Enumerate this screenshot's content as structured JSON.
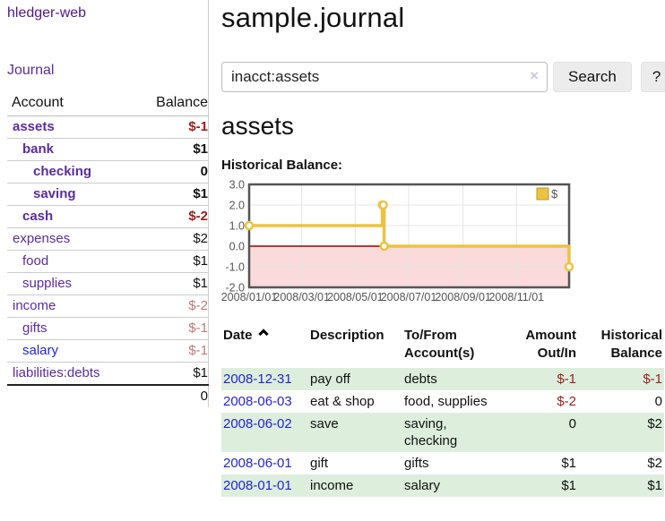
{
  "sidebar": {
    "brand": "hledger-web",
    "nav_journal": "Journal",
    "accounts_table": {
      "account_header": "Account",
      "balance_header": "Balance",
      "rows": [
        {
          "name": "assets",
          "balance": "$-1",
          "row_class": "hl",
          "indent_class": "d1",
          "link_class": "",
          "balance_class": "neg"
        },
        {
          "name": "bank",
          "balance": "$1",
          "row_class": "hl",
          "indent_class": "d2",
          "link_class": "",
          "balance_class": ""
        },
        {
          "name": "checking",
          "balance": "0",
          "row_class": "hl",
          "indent_class": "d3",
          "link_class": "",
          "balance_class": ""
        },
        {
          "name": "saving",
          "balance": "$1",
          "row_class": "hl",
          "indent_class": "d3",
          "link_class": "",
          "balance_class": ""
        },
        {
          "name": "cash",
          "balance": "$-2",
          "row_class": "hl",
          "indent_class": "d2",
          "link_class": "",
          "balance_class": "neg"
        },
        {
          "name": "expenses",
          "balance": "$2",
          "row_class": "",
          "indent_class": "d1",
          "link_class": "",
          "balance_class": ""
        },
        {
          "name": "food",
          "balance": "$1",
          "row_class": "",
          "indent_class": "d2",
          "link_class": "",
          "balance_class": ""
        },
        {
          "name": "supplies",
          "balance": "$1",
          "row_class": "",
          "indent_class": "d2",
          "link_class": "",
          "balance_class": ""
        },
        {
          "name": "income",
          "balance": "$-2",
          "row_class": "",
          "indent_class": "d1",
          "link_class": "",
          "balance_class": "negsoft"
        },
        {
          "name": "gifts",
          "balance": "$-1",
          "row_class": "",
          "indent_class": "d2",
          "link_class": "",
          "balance_class": "negsoft"
        },
        {
          "name": "salary",
          "balance": "$-1",
          "row_class": "",
          "indent_class": "d2",
          "link_class": "blue",
          "balance_class": "negsoft"
        },
        {
          "name": "liabilities:debts",
          "balance": "$1",
          "row_class": "",
          "indent_class": "d1",
          "link_class": "",
          "balance_class": ""
        }
      ],
      "total": "0"
    }
  },
  "main": {
    "title": "sample.journal",
    "search": {
      "value": "inacct:assets",
      "clear_icon": "×",
      "button_label": "Search",
      "help_label": "?"
    },
    "account_heading": "assets"
  },
  "chart_data": {
    "type": "line-step",
    "title": "Historical Balance:",
    "series": [
      {
        "name": "$",
        "color": "#EDC240",
        "points": [
          [
            "2008-01-01",
            1
          ],
          [
            "2008-06-01",
            2
          ],
          [
            "2008-06-02",
            2
          ],
          [
            "2008-06-03",
            0
          ],
          [
            "2008-12-31",
            -1
          ]
        ]
      }
    ],
    "x_ticks": [
      "2008/01/01",
      "2008/03/01",
      "2008/05/01",
      "2008/07/01",
      "2008/09/01",
      "2008/11/01"
    ],
    "y_ticks": [
      "3.0",
      "2.0",
      "1.0",
      "0.0",
      "-1.0",
      "-2.0"
    ],
    "xlim": [
      "2008-01-01",
      "2008-12-31"
    ],
    "ylim": [
      -2,
      3
    ],
    "grid": true,
    "legend_position": "top-right",
    "negative_region_color": "#fadada",
    "zero_line_color": "#990000",
    "tick_color": "#545454"
  },
  "register": {
    "headers": {
      "date": "Date",
      "sort_icon": "chevron-up",
      "description": "Description",
      "accounts": "To/From Account(s)",
      "amount": "Amount Out/In",
      "balance": "Historical Balance"
    },
    "rows": [
      {
        "date": "2008-12-31",
        "description": "pay off",
        "accounts": "debts",
        "amount": "$-1",
        "amount_class": "neg",
        "balance": "$-1",
        "balance_class": "neg"
      },
      {
        "date": "2008-06-03",
        "description": "eat & shop",
        "accounts": "food, supplies",
        "amount": "$-2",
        "amount_class": "neg",
        "balance": "0",
        "balance_class": ""
      },
      {
        "date": "2008-06-02",
        "description": "save",
        "accounts": "saving,\nchecking",
        "amount": "0",
        "amount_class": "",
        "balance": "$2",
        "balance_class": ""
      },
      {
        "date": "2008-06-01",
        "description": "gift",
        "accounts": "gifts",
        "amount": "$1",
        "amount_class": "",
        "balance": "$2",
        "balance_class": ""
      },
      {
        "date": "2008-01-01",
        "description": "income",
        "accounts": "salary",
        "amount": "$1",
        "amount_class": "",
        "balance": "$1",
        "balance_class": ""
      }
    ]
  }
}
